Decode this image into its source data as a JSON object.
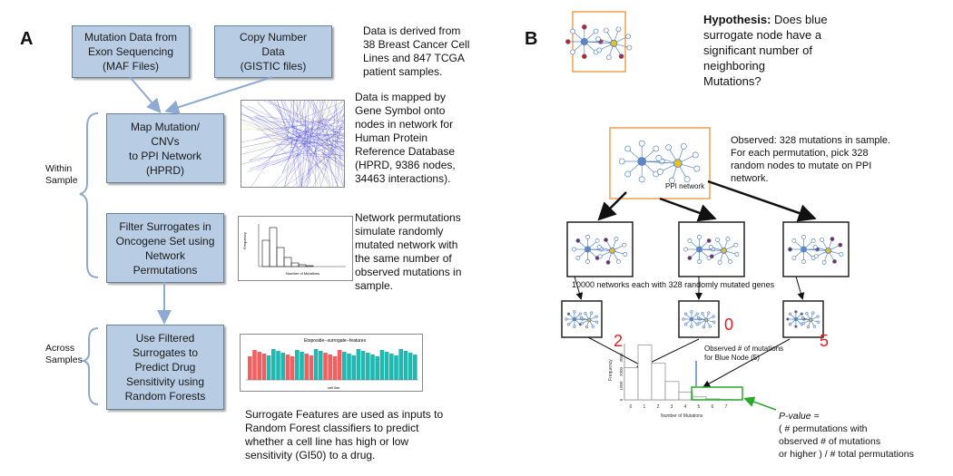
{
  "panel_a": {
    "letter": "A",
    "box_mutation": "Mutation Data from\nExon Sequencing\n(MAF Files)",
    "box_copy": "Copy Number\nData\n(GISTIC files)",
    "box_map": "Map Mutation/\nCNVs\nto PPI Network\n(HPRD)",
    "box_filter": "Filter Surrogates in\nOncogene Set using\nNetwork\nPermutations",
    "box_predict": "Use Filtered\nSurrogates to\nPredict Drug\nSensitivity using\nRandom Forests",
    "within_label": "Within\nSample",
    "across_label": "Across\nSamples",
    "text_data": "Data is derived from\n38 Breast Cancer Cell\nLines and 847 TCGA\npatient samples.",
    "text_mapped": "Data is mapped by\nGene Symbol onto\nnodes in network for\nHuman Protein\nReference Database\n(HPRD, 9386 nodes,\n34463 interactions).",
    "text_perm": "Network permutations\nsimulate randomly\nmutated network with\nthe same number of\nobserved mutations in\nsample.",
    "text_surrogate": "Surrogate Features are used as inputs to\nRandom Forest classifiers to predict\nwhether a cell line has high or low\nsensitivity (GI50) to a drug.",
    "hist_ylabel": "Frequency",
    "hist_xlabel": "Number of Mutations",
    "bar_title": "Etoposide--surrogate--features",
    "bar_xlabel": "cell line"
  },
  "panel_b": {
    "letter": "B",
    "hypothesis_bold": "Hypothesis:",
    "hypothesis_rest": " Does blue\nsurrogate node have a\nsignificant number of\nneighboring\nMutations?",
    "observed_text": "Observed: 328 mutations in sample.\nFor each permutation, pick 328\nrandom nodes to mutate on PPI\nnetwork.",
    "ppi_label": "PPI network",
    "networks_label": "10000 networks each with 328 randomly mutated genes",
    "count_1": "2",
    "count_2": "0",
    "count_3": "5",
    "observed_node": "Observed # of mutations\nfor Blue Node (5)",
    "pvalue_label": "P-value =",
    "pvalue_formula": "( # permutations with\nobserved # of mutations\nor higher ) / # total permutations",
    "hist_ylabel": "Frequency",
    "hist_xlabel": "Number of Mutations",
    "hist_ticks": [
      "0",
      "1",
      "2",
      "3",
      "4",
      "5",
      "6",
      "7"
    ],
    "hist_yticks": [
      "0",
      "1000",
      "2000",
      "3000"
    ]
  },
  "colors": {
    "box_fill": "#b8cce4",
    "arrow_blue": "#8eaad2",
    "orange": "#f0a050",
    "node_blue": "#5b86c4",
    "mutated_red": "#c0202a",
    "mutated_purple": "#7a2a5a",
    "green": "#2aa82a",
    "count_red": "#e02020"
  }
}
